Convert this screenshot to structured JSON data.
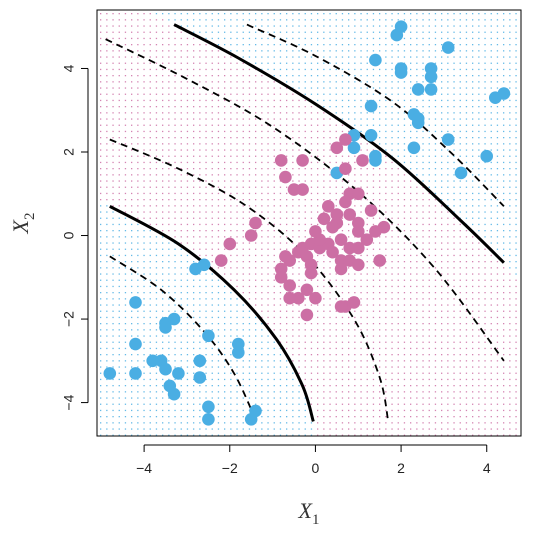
{
  "chart_data": {
    "type": "scatter",
    "title": "",
    "xlabel": {
      "main": "X",
      "sub": "1"
    },
    "ylabel": {
      "main": "X",
      "sub": "2"
    },
    "xlim": [
      -5.1,
      4.8
    ],
    "ylim": [
      -4.8,
      5.4
    ],
    "xticks": [
      -4,
      -2,
      0,
      2,
      4
    ],
    "xtick_labels": [
      "−4",
      "−2",
      "0",
      "2",
      "4"
    ],
    "yticks": [
      -4,
      -2,
      0,
      2,
      4
    ],
    "ytick_labels": [
      "−4",
      "−2",
      "0",
      "2",
      "4"
    ],
    "grid": false,
    "background": "grid of small dots colored by predicted class",
    "colors": {
      "blue": "#4aaee3",
      "purple": "#cc6fa4",
      "curve": "#000000"
    },
    "series": [
      {
        "color": "blue",
        "points": [
          [
            2.0,
            5.0
          ],
          [
            1.9,
            4.8
          ],
          [
            3.1,
            4.5
          ],
          [
            1.4,
            4.2
          ],
          [
            2.0,
            4.0
          ],
          [
            2.0,
            3.9
          ],
          [
            2.7,
            4.0
          ],
          [
            2.7,
            3.8
          ],
          [
            2.4,
            3.5
          ],
          [
            2.7,
            3.5
          ],
          [
            4.2,
            3.3
          ],
          [
            4.4,
            3.4
          ],
          [
            1.3,
            3.1
          ],
          [
            2.3,
            2.9
          ],
          [
            2.4,
            2.7
          ],
          [
            2.4,
            2.8
          ],
          [
            0.9,
            2.4
          ],
          [
            1.3,
            2.4
          ],
          [
            3.1,
            2.3
          ],
          [
            0.9,
            2.1
          ],
          [
            2.3,
            2.1
          ],
          [
            1.4,
            1.9
          ],
          [
            1.4,
            1.8
          ],
          [
            4.0,
            1.9
          ],
          [
            0.5,
            1.5
          ],
          [
            3.4,
            1.5
          ],
          [
            -4.2,
            -1.6
          ],
          [
            -3.5,
            -2.1
          ],
          [
            -3.5,
            -2.2
          ],
          [
            -3.3,
            -2.0
          ],
          [
            -2.5,
            -2.4
          ],
          [
            -4.2,
            -2.6
          ],
          [
            -1.8,
            -2.6
          ],
          [
            -1.8,
            -2.8
          ],
          [
            -3.8,
            -3.0
          ],
          [
            -3.6,
            -3.0
          ],
          [
            -3.5,
            -3.2
          ],
          [
            -2.7,
            -3.0
          ],
          [
            -4.8,
            -3.3
          ],
          [
            -4.2,
            -3.3
          ],
          [
            -3.2,
            -3.3
          ],
          [
            -2.7,
            -3.4
          ],
          [
            -3.4,
            -3.6
          ],
          [
            -3.3,
            -3.8
          ],
          [
            -2.5,
            -4.1
          ],
          [
            -2.5,
            -4.4
          ],
          [
            -1.4,
            -4.2
          ],
          [
            -1.5,
            -4.4
          ],
          [
            -2.8,
            -0.8
          ],
          [
            -2.6,
            -0.7
          ]
        ]
      },
      {
        "color": "purple",
        "points": [
          [
            -0.3,
            1.8
          ],
          [
            -0.8,
            1.8
          ],
          [
            -0.7,
            1.4
          ],
          [
            0.5,
            2.1
          ],
          [
            0.7,
            2.3
          ],
          [
            1.1,
            1.8
          ],
          [
            0.7,
            1.6
          ],
          [
            -0.5,
            1.1
          ],
          [
            -0.3,
            1.1
          ],
          [
            0.8,
            1.0
          ],
          [
            1.0,
            1.0
          ],
          [
            0.7,
            0.8
          ],
          [
            0.3,
            0.7
          ],
          [
            0.5,
            0.5
          ],
          [
            0.5,
            0.3
          ],
          [
            0.8,
            0.5
          ],
          [
            1.3,
            0.6
          ],
          [
            1.0,
            0.3
          ],
          [
            -1.4,
            0.3
          ],
          [
            -1.5,
            0.0
          ],
          [
            -2.0,
            -0.2
          ],
          [
            -2.2,
            -0.6
          ],
          [
            -0.6,
            -0.6
          ],
          [
            -0.8,
            -0.8
          ],
          [
            -0.7,
            -0.5
          ],
          [
            -0.4,
            -0.4
          ],
          [
            -0.2,
            -0.5
          ],
          [
            -0.1,
            -0.7
          ],
          [
            -0.3,
            -0.3
          ],
          [
            -0.1,
            -0.2
          ],
          [
            0.1,
            -0.3
          ],
          [
            0.3,
            -0.2
          ],
          [
            0.4,
            -0.4
          ],
          [
            0.6,
            -0.1
          ],
          [
            0.8,
            -0.3
          ],
          [
            1.0,
            -0.3
          ],
          [
            1.2,
            -0.1
          ],
          [
            1.4,
            0.1
          ],
          [
            1.6,
            0.2
          ],
          [
            0.6,
            -0.6
          ],
          [
            0.8,
            -0.6
          ],
          [
            0.6,
            -0.8
          ],
          [
            1.0,
            -0.7
          ],
          [
            1.5,
            -0.6
          ],
          [
            0.1,
            -0.1
          ],
          [
            0.0,
            0.1
          ],
          [
            -0.1,
            -0.9
          ],
          [
            -0.8,
            -1.0
          ],
          [
            -0.6,
            -1.2
          ],
          [
            -0.4,
            -1.5
          ],
          [
            -0.2,
            -1.3
          ],
          [
            -0.6,
            -1.5
          ],
          [
            0.0,
            -1.5
          ],
          [
            -0.2,
            -1.9
          ],
          [
            0.7,
            -1.7
          ],
          [
            0.9,
            -1.6
          ],
          [
            0.6,
            -1.7
          ],
          [
            1.0,
            0.1
          ],
          [
            0.4,
            0.2
          ],
          [
            0.2,
            0.4
          ]
        ]
      }
    ],
    "curves": [
      {
        "style": "solid",
        "points": [
          [
            -3.3,
            5.05
          ],
          [
            -1.8,
            4.25
          ],
          [
            0.0,
            3.15
          ],
          [
            1.8,
            1.85
          ],
          [
            3.4,
            0.35
          ],
          [
            4.4,
            -0.65
          ]
        ]
      },
      {
        "style": "dashed",
        "points": [
          [
            -1.6,
            5.05
          ],
          [
            0.0,
            4.3
          ],
          [
            1.8,
            3.2
          ],
          [
            3.2,
            1.95
          ],
          [
            4.4,
            0.7
          ]
        ]
      },
      {
        "style": "dashed",
        "points": [
          [
            -4.9,
            4.7
          ],
          [
            -3.0,
            3.75
          ],
          [
            -1.0,
            2.6
          ],
          [
            1.0,
            1.05
          ],
          [
            2.8,
            -0.8
          ],
          [
            4.4,
            -3.0
          ]
        ]
      },
      {
        "style": "dashed",
        "points": [
          [
            -4.8,
            2.3
          ],
          [
            -3.2,
            1.6
          ],
          [
            -1.6,
            0.7
          ],
          [
            -0.2,
            -0.5
          ],
          [
            0.9,
            -2.0
          ],
          [
            1.5,
            -3.4
          ],
          [
            1.7,
            -4.45
          ]
        ]
      },
      {
        "style": "solid",
        "points": [
          [
            -4.8,
            0.7
          ],
          [
            -3.2,
            -0.2
          ],
          [
            -1.9,
            -1.3
          ],
          [
            -0.9,
            -2.5
          ],
          [
            -0.3,
            -3.6
          ],
          [
            -0.05,
            -4.45
          ]
        ]
      },
      {
        "style": "dashed",
        "points": [
          [
            -4.8,
            -0.5
          ],
          [
            -3.6,
            -1.3
          ],
          [
            -2.6,
            -2.3
          ],
          [
            -1.9,
            -3.3
          ],
          [
            -1.4,
            -4.4
          ]
        ]
      }
    ]
  }
}
